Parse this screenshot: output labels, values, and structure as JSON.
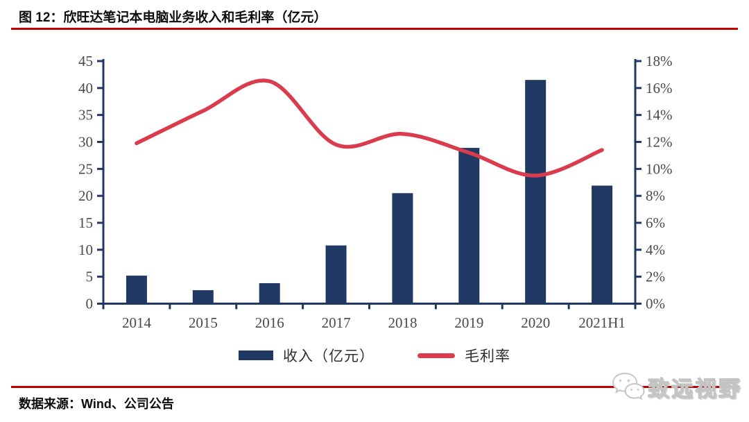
{
  "header": {
    "title": "图 12：欣旺达笔记本电脑业务收入和毛利率（亿元）"
  },
  "footer": {
    "source": "数据来源：Wind、公司公告"
  },
  "watermark": {
    "text": "致远视野",
    "icon": "chat-bubbles-logo"
  },
  "colors": {
    "bar": "#1F3864",
    "line": "#D93C4C",
    "axis": "#1F3864",
    "rule": "#C00000",
    "tick_label": "#4a4a4a"
  },
  "chart_data": {
    "type": "combo-bar-line",
    "title": "图 12：欣旺达笔记本电脑业务收入和毛利率（亿元）",
    "categories": [
      "2014",
      "2015",
      "2016",
      "2017",
      "2018",
      "2019",
      "2020",
      "2021H1"
    ],
    "series": [
      {
        "name": "收入（亿元）",
        "type": "bar",
        "axis": "left",
        "values": [
          5.2,
          2.5,
          3.8,
          10.8,
          20.5,
          28.9,
          41.5,
          21.9
        ]
      },
      {
        "name": "毛利率",
        "type": "line",
        "axis": "right",
        "unit": "%",
        "values": [
          11.9,
          14.3,
          16.5,
          11.8,
          12.6,
          11.2,
          9.5,
          11.4
        ]
      }
    ],
    "left_axis": {
      "min": 0,
      "max": 45,
      "step": 5,
      "tick_labels": [
        "0",
        "5",
        "10",
        "15",
        "20",
        "25",
        "30",
        "35",
        "40",
        "45"
      ]
    },
    "right_axis": {
      "min": 0,
      "max": 18,
      "step": 2,
      "tick_labels": [
        "0%",
        "2%",
        "4%",
        "6%",
        "8%",
        "10%",
        "12%",
        "14%",
        "16%",
        "18%"
      ]
    },
    "grid": "off",
    "legend_position": "bottom",
    "legend": [
      {
        "label": "收入（亿元）",
        "swatch": "bar"
      },
      {
        "label": "毛利率",
        "swatch": "line"
      }
    ]
  }
}
